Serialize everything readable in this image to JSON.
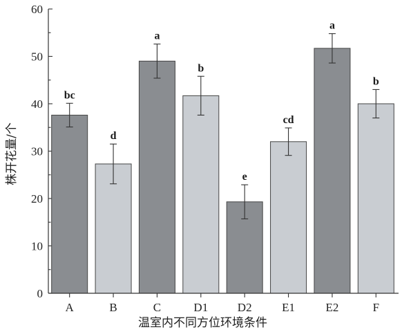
{
  "chart_data": {
    "type": "bar",
    "title": "",
    "xlabel": "温室内不同方位环境条件",
    "ylabel": "株开花量/个",
    "ylim": [
      0,
      60
    ],
    "yticks": [
      0,
      10,
      20,
      30,
      40,
      50,
      60
    ],
    "categories": [
      "A",
      "B",
      "C",
      "D1",
      "D2",
      "E1",
      "E2",
      "F"
    ],
    "values": [
      37.6,
      27.3,
      49.0,
      41.7,
      19.3,
      32.0,
      51.7,
      40.0
    ],
    "errors": [
      2.5,
      4.2,
      3.6,
      4.1,
      3.6,
      2.9,
      3.1,
      3.0
    ],
    "significance": [
      "bc",
      "d",
      "a",
      "b",
      "e",
      "cd",
      "a",
      "b"
    ],
    "bar_colors": [
      "#8a8d91",
      "#c9cdd2",
      "#8a8d91",
      "#c9cdd2",
      "#8a8d91",
      "#c9cdd2",
      "#8a8d91",
      "#c9cdd2"
    ],
    "grid": false,
    "legend": "none"
  }
}
